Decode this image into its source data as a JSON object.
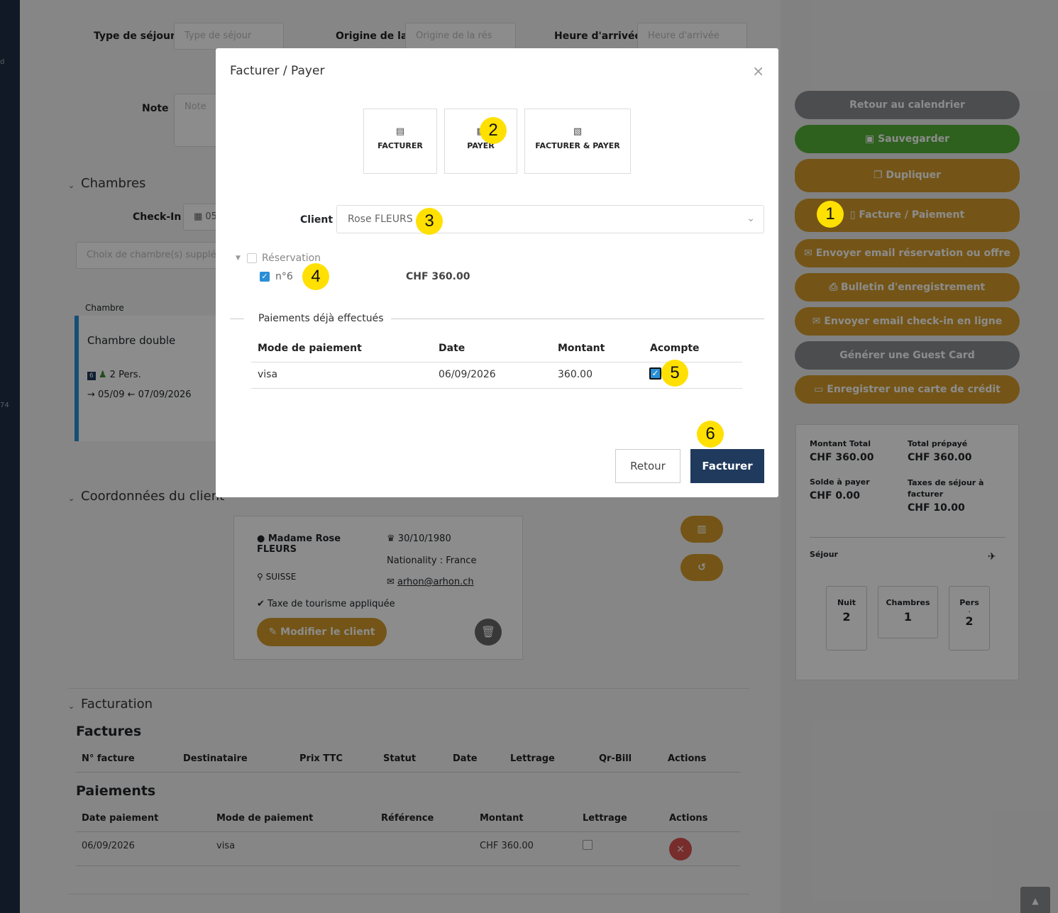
{
  "form": {
    "type_sejour_label": "Type de séjour",
    "type_sejour_placeholder": "Type de séjour",
    "origine_label": "Origine de la",
    "origine_placeholder": "Origine de la rés",
    "heure_label": "Heure d'arrivée",
    "heure_placeholder": "Heure d'arrivée",
    "note_label": "Note",
    "note_placeholder": "Note"
  },
  "chambres": {
    "title": "Chambres",
    "checkin_label": "Check-In",
    "checkin_value": "05",
    "choix_placeholder": "Choix de chambre(s) supplé",
    "col_chambre": "Chambre",
    "room_name": "Chambre double",
    "room_badge": "6",
    "room_pers": "2 Pers.",
    "room_dates": "05/09 ← 07/09/2026",
    "side_marks": [
      "d",
      "74"
    ]
  },
  "client": {
    "title": "Coordonnées du client",
    "civ": "Madame",
    "first": "Rose",
    "last": "FLEURS",
    "country": "SUISSE",
    "birth": "30/10/1980",
    "nationality": "Nationality : France",
    "email": "arhon@arhon.ch",
    "tax": "Taxe de tourisme appliquée",
    "edit_button": "Modifier le client"
  },
  "facturation": {
    "title": "Facturation",
    "factures_title": "Factures",
    "factures_cols": [
      "N° facture",
      "Destinataire",
      "Prix TTC",
      "Statut",
      "Date",
      "Lettrage",
      "Qr-Bill",
      "Actions"
    ],
    "paiements_title": "Paiements",
    "paiements_cols": [
      "Date paiement",
      "Mode de paiement",
      "Référence",
      "Montant",
      "Lettrage",
      "Actions"
    ],
    "paiement_row": {
      "date": "06/09/2026",
      "mode": "visa",
      "ref": "",
      "montant": "CHF 360.00"
    }
  },
  "actions": {
    "retour": "Retour au calendrier",
    "save": "Sauvegarder",
    "dup": "Dupliquer",
    "facture": "Facture / Paiement",
    "email_resa": "Envoyer email réservation ou offre",
    "bulletin": "Bulletin d'enregistrement",
    "email_checkin": "Envoyer email check-in en ligne",
    "guest_card": "Générer une Guest Card",
    "carte": "Enregistrer une carte de crédit"
  },
  "summary": {
    "total_label": "Montant Total",
    "total": "CHF 360.00",
    "prepaye_label": "Total prépayé",
    "prepaye": "CHF 360.00",
    "solde_label": "Solde à payer",
    "solde": "CHF 0.00",
    "taxes_label": "Taxes de séjour à facturer",
    "taxes": "CHF 10.00",
    "sejour_label": "Séjour",
    "nuit_label": "Nuit",
    "nuit": "2",
    "chambres_label": "Chambres",
    "chambres": "1",
    "pers_label": "Pers",
    "pers_dot": ".",
    "pers": "2"
  },
  "modal": {
    "title": "Facturer / Payer",
    "tab_facturer": "FACTURER",
    "tab_payer": "PAYER",
    "tab_both": "FACTURER & PAYER",
    "client_label": "Client",
    "client_value": "Rose FLEURS",
    "reservation_label": "Réservation",
    "resa_item": "n°6",
    "resa_amount": "CHF 360.00",
    "paiements_title": "Paiements déjà effectués",
    "cols": [
      "Mode de paiement",
      "Date",
      "Montant",
      "Acompte"
    ],
    "row": {
      "mode": "visa",
      "date": "06/09/2026",
      "montant": "360.00"
    },
    "back_button": "Retour",
    "submit_button": "Facturer"
  },
  "badges": [
    "1",
    "2",
    "3",
    "4",
    "5",
    "6"
  ],
  "colors": {
    "gold": "#d49b2a",
    "green": "#55b138",
    "gray": "#8a8d90",
    "navy": "#1f3a5c",
    "badge": "#ffe000"
  }
}
